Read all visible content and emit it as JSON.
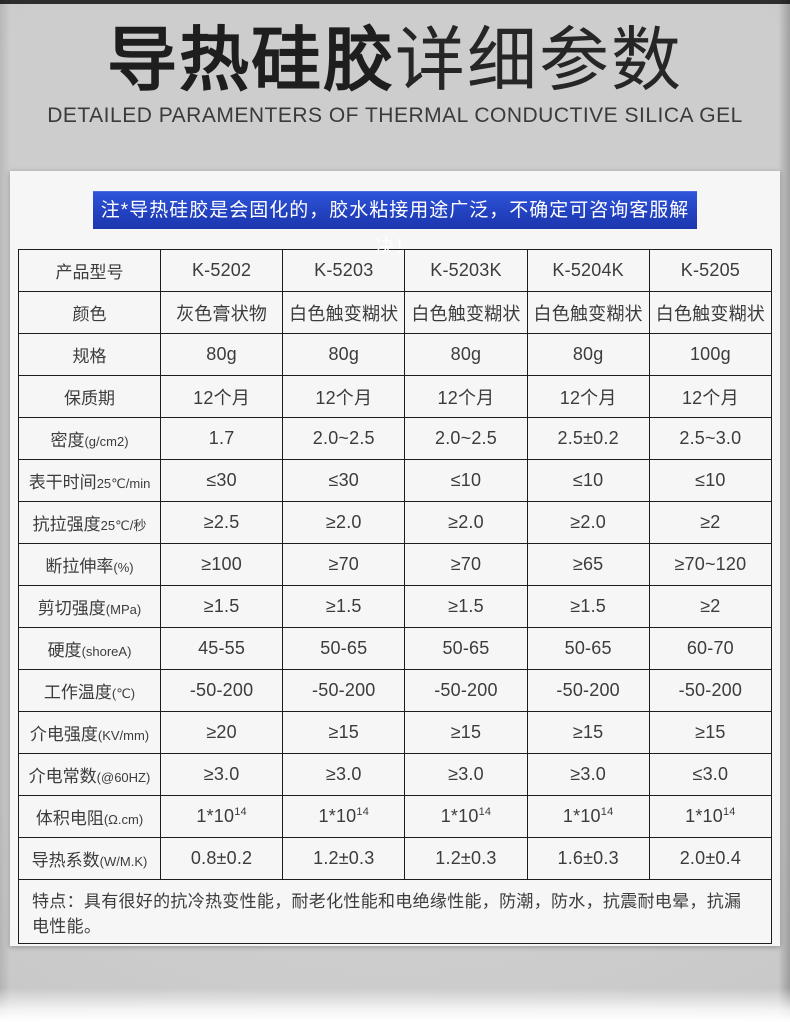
{
  "header": {
    "title_bold": "导热硅胶",
    "title_light": "详细参数",
    "subtitle": "DETAILED PARAMENTERS OF THERMAL CONDUCTIVE SILICA GEL"
  },
  "notice": {
    "text": "注*导热硅胶是会固化的，胶水粘接用途广泛，不确定可咨询客服解决！"
  },
  "colors": {
    "accent_blue": "#2343c3",
    "page_background": "#c9c9c9",
    "panel_background": "#f6f6f6",
    "table_border": "#1d1d1d",
    "table_text": "#3c3c3c"
  },
  "table": {
    "header_row": {
      "label": "产品型号",
      "unit": "",
      "values": [
        "K-5202",
        "K-5203",
        "K-5203K",
        "K-5204K",
        "K-5205"
      ]
    },
    "rows": [
      {
        "label": "颜色",
        "unit": "",
        "values": [
          "灰色膏状物",
          "白色触变糊状",
          "白色触变糊状",
          "白色触变糊状",
          "白色触变糊状"
        ]
      },
      {
        "label": "规格",
        "unit": "",
        "values": [
          "80g",
          "80g",
          "80g",
          "80g",
          "100g"
        ]
      },
      {
        "label": "保质期",
        "unit": "",
        "values": [
          "12个月",
          "12个月",
          "12个月",
          "12个月",
          "12个月"
        ]
      },
      {
        "label": "密度",
        "unit": "(g/cm2)",
        "values": [
          "1.7",
          "2.0~2.5",
          "2.0~2.5",
          "2.5±0.2",
          "2.5~3.0"
        ]
      },
      {
        "label": "表干时间",
        "unit": "25℃/min",
        "values": [
          "≤30",
          "≤30",
          "≤10",
          "≤10",
          "≤10"
        ]
      },
      {
        "label": "抗拉强度",
        "unit": "25℃/秒",
        "values": [
          "≥2.5",
          "≥2.0",
          "≥2.0",
          "≥2.0",
          "≥2"
        ]
      },
      {
        "label": "断拉伸率",
        "unit": "(%)",
        "values": [
          "≥100",
          "≥70",
          "≥70",
          "≥65",
          "≥70~120"
        ]
      },
      {
        "label": "剪切强度",
        "unit": "(MPa)",
        "values": [
          "≥1.5",
          "≥1.5",
          "≥1.5",
          "≥1.5",
          "≥2"
        ]
      },
      {
        "label": "硬度",
        "unit": "(shoreA)",
        "values": [
          "45-55",
          "50-65",
          "50-65",
          "50-65",
          "60-70"
        ]
      },
      {
        "label": "工作温度",
        "unit": "(℃)",
        "values": [
          "-50-200",
          "-50-200",
          "-50-200",
          "-50-200",
          "-50-200"
        ]
      },
      {
        "label": "介电强度",
        "unit": "(KV/mm)",
        "values": [
          "≥20",
          "≥15",
          "≥15",
          "≥15",
          "≥15"
        ]
      },
      {
        "label": "介电常数",
        "unit": "(@60HZ)",
        "values": [
          "≥3.0",
          "≥3.0",
          "≥3.0",
          "≥3.0",
          "≤3.0"
        ]
      },
      {
        "label": "体积电阻",
        "unit": "(Ω.cm)",
        "values": [
          "1*10^14",
          "1*10^14",
          "1*10^14",
          "1*10^14",
          "1*10^14"
        ]
      },
      {
        "label": "导热系数",
        "unit": "(W/M.K)",
        "values": [
          "0.8±0.2",
          "1.2±0.3",
          "1.2±0.3",
          "1.6±0.3",
          "2.0±0.4"
        ]
      }
    ],
    "footer_note": "特点：具有很好的抗冷热变性能，耐老化性能和电绝缘性能，防潮，防水，抗震耐电晕，抗漏电性能。"
  }
}
